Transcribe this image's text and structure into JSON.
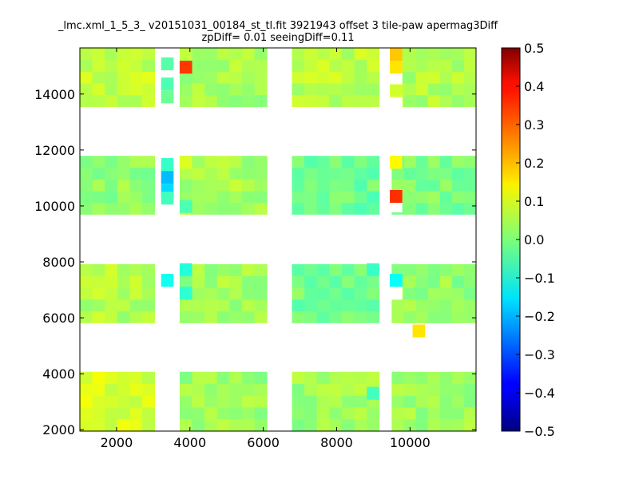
{
  "chart_data": {
    "type": "heatmap",
    "title_line1": "_lmc.xml_1_5_3_ v20151031_00184_st_tl.fit 3921943 offset 3 tile-paw apermag3Diff",
    "title_line2": "zpDiff= 0.01 seeingDiff=0.11",
    "xlabel": "",
    "ylabel": "",
    "xlim": [
      1000,
      11800
    ],
    "ylim": [
      1950,
      15650
    ],
    "x_ticks": [
      2000,
      4000,
      6000,
      8000,
      10000
    ],
    "y_ticks": [
      2000,
      4000,
      6000,
      8000,
      10000,
      12000,
      14000
    ],
    "colorbar": {
      "colormap": "jet",
      "vmin": -0.5,
      "vmax": 0.5,
      "ticks": [
        "0.5",
        "0.4",
        "0.3",
        "0.2",
        "0.1",
        "0.0",
        "−0.1",
        "−0.2",
        "−0.3",
        "−0.4",
        "−0.5"
      ]
    },
    "cell_size": [
      340,
      460
    ],
    "detector_columns": [
      {
        "x0": 1000,
        "x1": 3040
      },
      {
        "x0": 3720,
        "x1": 6100
      },
      {
        "x0": 6780,
        "x1": 9160
      },
      {
        "x0": 9500,
        "x1": 11800
      }
    ],
    "detector_rows": [
      {
        "y0": 1960,
        "y1": 4070
      },
      {
        "y0": 5820,
        "y1": 7920
      },
      {
        "y0": 9700,
        "y1": 11790
      },
      {
        "y0": 13550,
        "y1": 15650
      }
    ],
    "block_base_values": [
      [
        0.09,
        0.03,
        0.03,
        0.03
      ],
      [
        0.05,
        0.03,
        -0.01,
        0.02
      ],
      [
        0.02,
        0.04,
        -0.02,
        0.0
      ],
      [
        0.07,
        0.04,
        0.06,
        0.05
      ]
    ],
    "cell_variation": 0.035,
    "special_cells": [
      {
        "x": 3385,
        "y": 15080,
        "v": -0.04
      },
      {
        "x": 3385,
        "y": 14360,
        "v": -0.05
      },
      {
        "x": 3385,
        "y": 13900,
        "v": -0.02
      },
      {
        "x": 3890,
        "y": 14960,
        "v": 0.32
      },
      {
        "x": 9620,
        "y": 15420,
        "v": 0.18
      },
      {
        "x": 9620,
        "y": 14960,
        "v": 0.15
      },
      {
        "x": 9620,
        "y": 14120,
        "v": 0.08
      },
      {
        "x": 3385,
        "y": 11480,
        "v": -0.07
      },
      {
        "x": 3385,
        "y": 11020,
        "v": -0.19
      },
      {
        "x": 3385,
        "y": 10560,
        "v": -0.16
      },
      {
        "x": 3385,
        "y": 10280,
        "v": -0.06
      },
      {
        "x": 3890,
        "y": 11560,
        "v": 0.09
      },
      {
        "x": 3890,
        "y": 9980,
        "v": -0.05
      },
      {
        "x": 9620,
        "y": 11560,
        "v": 0.13
      },
      {
        "x": 9620,
        "y": 10340,
        "v": 0.33
      },
      {
        "x": 3385,
        "y": 7340,
        "v": -0.11
      },
      {
        "x": 3890,
        "y": 7720,
        "v": -0.09
      },
      {
        "x": 3890,
        "y": 6880,
        "v": -0.08
      },
      {
        "x": 8990,
        "y": 7720,
        "v": -0.07
      },
      {
        "x": 9620,
        "y": 7340,
        "v": -0.12
      },
      {
        "x": 10240,
        "y": 5530,
        "v": 0.15
      },
      {
        "x": 8990,
        "y": 3300,
        "v": -0.06
      }
    ],
    "blank_cells": [
      {
        "x": 3385,
        "y": 14700
      },
      {
        "x": 3385,
        "y": 15400
      },
      {
        "x": 9620,
        "y": 14570
      },
      {
        "x": 9620,
        "y": 13750
      },
      {
        "x": 9620,
        "y": 10000
      },
      {
        "x": 9330,
        "y": 7340
      },
      {
        "x": 9620,
        "y": 6880
      },
      {
        "x": 3385,
        "y": 6880
      },
      {
        "x": 3385,
        "y": 6400
      },
      {
        "x": 3385,
        "y": 5970
      }
    ]
  }
}
